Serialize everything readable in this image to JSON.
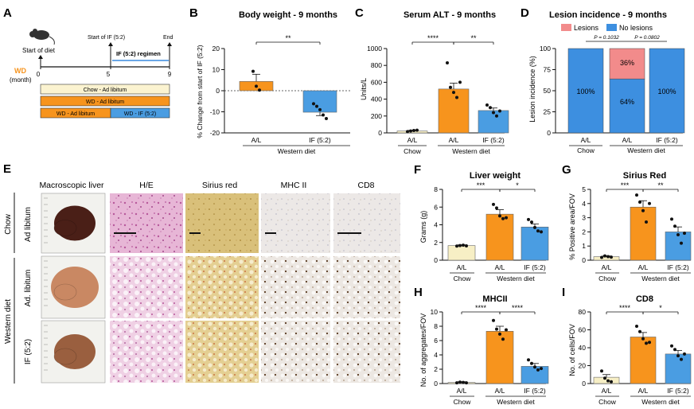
{
  "colors": {
    "chow": "#f7efc5",
    "al": "#f7941d",
    "if": "#4a9de2",
    "lesion": "#f28b8b",
    "nolesion": "#3d8fe0",
    "bar_stroke": "#555555"
  },
  "panelA": {
    "letter": "A",
    "start_of_diet": "Start of diet",
    "start_if": "Start of IF (5:2)",
    "end": "End",
    "wd": "WD",
    "month": "(month)",
    "ticks": [
      "0",
      "5",
      "9"
    ],
    "regimen": "IF (5:2) regimen",
    "bars": {
      "chow": "Chow - Ad libitum",
      "wd": "WD - Ad libitum",
      "wd_short": "WD - Ad libitum",
      "wd_if": "WD - IF (5:2)"
    }
  },
  "panelB": {
    "letter": "B",
    "title": "Body weight - 9 months",
    "ylabel": "% Change from start of IF (5:2)",
    "group": "Western diet",
    "sig": "**",
    "chart_data": {
      "type": "bar",
      "categories": [
        "A/L",
        "IF (5:2)"
      ],
      "values": [
        4.4,
        -10.2
      ],
      "errors": [
        3.4,
        1.6
      ],
      "points": [
        [
          9.2,
          2.1,
          0.3
        ],
        [
          -6.2,
          -7.4,
          -9.0,
          -11.5,
          -13.2
        ]
      ],
      "ylim": [
        -20,
        20
      ],
      "yticks": [
        "20",
        "10",
        "0",
        "-10",
        "-20"
      ]
    }
  },
  "panelC": {
    "letter": "C",
    "title": "Serum ALT - 9 months",
    "ylabel": "Units/L",
    "group_chow": "Chow",
    "group": "Western diet",
    "sig1": "****",
    "sig2": "**",
    "chart_data": {
      "type": "bar",
      "categories": [
        "A/L",
        "A/L",
        "IF (5:2)"
      ],
      "values": [
        22,
        520,
        265
      ],
      "errors": [
        8,
        70,
        30
      ],
      "points": [
        [
          15,
          22,
          28,
          32
        ],
        [
          830,
          540,
          480,
          420,
          600
        ],
        [
          330,
          300,
          240,
          200,
          260
        ]
      ],
      "ylim": [
        0,
        1000
      ],
      "yticks": [
        "1000",
        "800",
        "600",
        "400",
        "200",
        "0"
      ]
    }
  },
  "panelD": {
    "letter": "D",
    "title": "Lesion incidence - 9 months",
    "ylabel": "Lesion incidence (%)",
    "legend": [
      "Lesions",
      "No lesions"
    ],
    "p1": "P = 0.1032",
    "p2": "P = 0.0802",
    "group_chow": "Chow",
    "group": "Western diet",
    "labels": {
      "chow": "100%",
      "al_lesion": "36%",
      "al_no": "64%",
      "if": "100%"
    },
    "chart_data": {
      "type": "bar",
      "categories": [
        "A/L",
        "A/L",
        "IF (5:2)"
      ],
      "lesions": [
        0,
        36,
        0
      ],
      "no_lesions": [
        100,
        64,
        100
      ],
      "ylim": [
        0,
        100
      ],
      "yticks": [
        "100",
        "75",
        "50",
        "25",
        "0"
      ]
    }
  },
  "panelE": {
    "letter": "E",
    "headers": [
      "Macroscopic liver",
      "H/E",
      "Sirius red",
      "MHC II",
      "CD8"
    ],
    "row1": "Ad libitum",
    "row2": "Ad. libitum",
    "row3": "IF (5:2)",
    "group1": "Chow",
    "group2": "Western diet"
  },
  "panelF": {
    "letter": "F",
    "title": "Liver weight",
    "ylabel": "Grams (g)",
    "sig1": "***",
    "sig2": "*",
    "group_chow": "Chow",
    "group": "Western diet",
    "chart_data": {
      "type": "bar",
      "categories": [
        "A/L",
        "A/L",
        "IF (5:2)"
      ],
      "values": [
        1.65,
        5.2,
        3.75
      ],
      "errors": [
        0.08,
        0.5,
        0.35
      ],
      "points": [
        [
          1.6,
          1.65,
          1.7,
          1.62
        ],
        [
          6.3,
          5.9,
          5.0,
          4.7,
          4.8
        ],
        [
          4.6,
          4.3,
          3.7,
          3.3,
          3.2
        ]
      ],
      "ylim": [
        0,
        8
      ],
      "yticks": [
        "8",
        "6",
        "4",
        "2",
        "0"
      ]
    }
  },
  "panelG": {
    "letter": "G",
    "title": "Sirius Red",
    "ylabel": "% Positive area/FOV",
    "sig1": "***",
    "sig2": "**",
    "group_chow": "Chow",
    "group": "Western diet",
    "chart_data": {
      "type": "bar",
      "categories": [
        "A/L",
        "A/L",
        "IF (5:2)"
      ],
      "values": [
        0.25,
        3.75,
        2.0
      ],
      "errors": [
        0.05,
        0.45,
        0.35
      ],
      "points": [
        [
          0.2,
          0.3,
          0.25,
          0.22
        ],
        [
          4.6,
          4.1,
          3.5,
          2.7,
          4.0
        ],
        [
          2.9,
          2.4,
          1.8,
          1.2,
          1.9
        ]
      ],
      "ylim": [
        0,
        5
      ],
      "yticks": [
        "5",
        "4",
        "3",
        "2",
        "1",
        "0"
      ]
    }
  },
  "panelH": {
    "letter": "H",
    "title": "MHCII",
    "ylabel": "No. of aggregates/FOV",
    "sig1": "****",
    "sig2": "****",
    "group_chow": "Chow",
    "group": "Western diet",
    "chart_data": {
      "type": "bar",
      "categories": [
        "A/L",
        "A/L",
        "IF (5:2)"
      ],
      "values": [
        0.15,
        7.3,
        2.4
      ],
      "errors": [
        0.1,
        0.7,
        0.4
      ],
      "points": [
        [
          0.1,
          0.2,
          0.15,
          0.1
        ],
        [
          8.8,
          7.6,
          6.9,
          6.2,
          7.5
        ],
        [
          3.3,
          2.8,
          2.3,
          1.9,
          2.1
        ]
      ],
      "ylim": [
        0,
        10
      ],
      "yticks": [
        "10",
        "8",
        "6",
        "4",
        "2",
        "0"
      ]
    }
  },
  "panelI": {
    "letter": "I",
    "title": "CD8",
    "ylabel": "No. of cells/FOV",
    "sig1": "****",
    "sig2": "*",
    "group_chow": "Chow",
    "group": "Western diet",
    "chart_data": {
      "type": "bar",
      "categories": [
        "A/L",
        "A/L",
        "IF (5:2)"
      ],
      "values": [
        7,
        52,
        33
      ],
      "errors": [
        3,
        5,
        4
      ],
      "points": [
        [
          14,
          6,
          3,
          2
        ],
        [
          64,
          58,
          50,
          45,
          46
        ],
        [
          42,
          38,
          31,
          27,
          33
        ]
      ],
      "ylim": [
        0,
        80
      ],
      "yticks": [
        "80",
        "60",
        "40",
        "20",
        "0"
      ]
    }
  }
}
